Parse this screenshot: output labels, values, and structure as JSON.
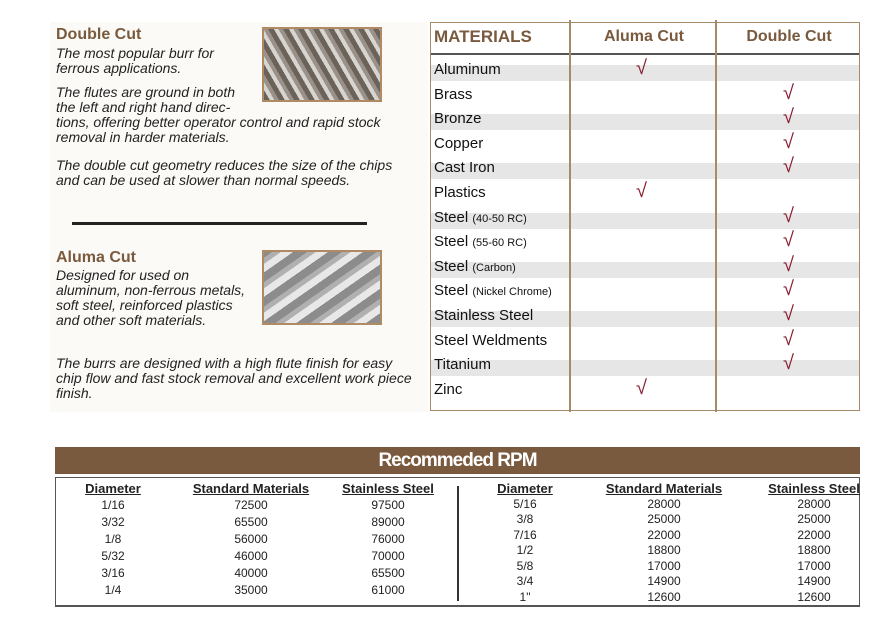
{
  "double_cut": {
    "title": "Double Cut",
    "p1": "The most popular burr for ferrous applications.",
    "p2a": "The flutes are ground in both",
    "p2b": "the left and right hand direc-",
    "p2c": "tions, offering better operator control and rapid stock removal in harder materials.",
    "p3": "The double cut geometry reduces the size of the chips and can be used at slower than normal speeds."
  },
  "aluma_cut": {
    "title": "Aluma Cut",
    "p1": "Designed for used on aluminum, non-ferrous metals, soft steel, reinforced plastics and other soft materials.",
    "p2": "The burrs are designed with a high flute finish for easy chip flow and fast stock removal and excellent work piece finish."
  },
  "materials": {
    "headers": [
      "MATERIALS",
      "Aluma Cut",
      "Double Cut"
    ],
    "check": "√",
    "check_color": "#8a1d2e",
    "rows": [
      {
        "name": "Aluminum",
        "note": "",
        "aluma": true,
        "double": false
      },
      {
        "name": "Brass",
        "note": "",
        "aluma": false,
        "double": true
      },
      {
        "name": "Bronze",
        "note": "",
        "aluma": false,
        "double": true
      },
      {
        "name": "Copper",
        "note": "",
        "aluma": false,
        "double": true
      },
      {
        "name": "Cast Iron",
        "note": "",
        "aluma": false,
        "double": true
      },
      {
        "name": "Plastics",
        "note": "",
        "aluma": true,
        "double": false
      },
      {
        "name": "Steel",
        "note": "(40-50 RC)",
        "aluma": false,
        "double": true
      },
      {
        "name": "Steel",
        "note": "(55-60 RC)",
        "aluma": false,
        "double": true
      },
      {
        "name": "Steel",
        "note": "(Carbon)",
        "aluma": false,
        "double": true
      },
      {
        "name": "Steel",
        "note": "(Nickel Chrome)",
        "aluma": false,
        "double": true
      },
      {
        "name": "Stainless Steel",
        "note": "",
        "aluma": false,
        "double": true
      },
      {
        "name": "Steel Weldments",
        "note": "",
        "aluma": false,
        "double": true
      },
      {
        "name": "Titanium",
        "note": "",
        "aluma": false,
        "double": true
      },
      {
        "name": "Zinc",
        "note": "",
        "aluma": true,
        "double": false
      }
    ]
  },
  "rpm": {
    "title": "Recommeded RPM",
    "headers": [
      "Diameter",
      "Standard Materials",
      "Stainless Steel"
    ],
    "left": [
      [
        "1/16",
        "72500",
        "97500"
      ],
      [
        "3/32",
        "65500",
        "89000"
      ],
      [
        "1/8",
        "56000",
        "76000"
      ],
      [
        "5/32",
        "46000",
        "70000"
      ],
      [
        "3/16",
        "40000",
        "65500"
      ],
      [
        "1/4",
        "35000",
        "61000"
      ]
    ],
    "right": [
      [
        "5/16",
        "28000",
        "28000"
      ],
      [
        "3/8",
        "25000",
        "25000"
      ],
      [
        "7/16",
        "22000",
        "22000"
      ],
      [
        "1/2",
        "18800",
        "18800"
      ],
      [
        "5/8",
        "17000",
        "17000"
      ],
      [
        "3/4",
        "14900",
        "14900"
      ],
      [
        "1\"",
        "12600",
        "12600"
      ]
    ]
  }
}
